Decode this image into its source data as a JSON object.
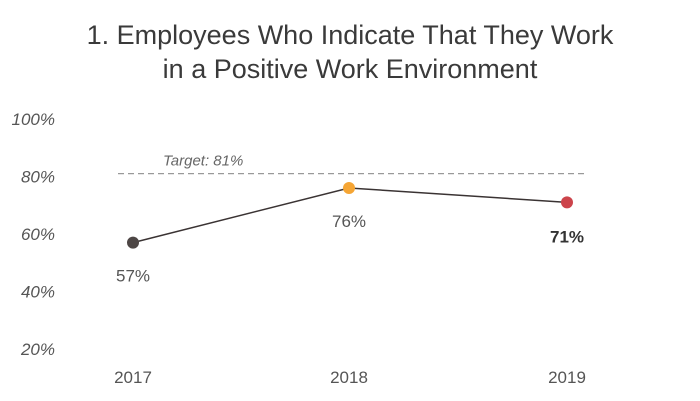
{
  "chart_data": {
    "type": "line",
    "title_line1": "1. Employees Who Indicate That They Work",
    "title_line2": "in a Positive Work Environment",
    "categories": [
      "2017",
      "2018",
      "2019"
    ],
    "values": [
      57,
      76,
      71
    ],
    "value_labels": [
      "57%",
      "76%",
      "71%"
    ],
    "point_colors": [
      "#4d4645",
      "#f5a534",
      "#cc444b"
    ],
    "line_color": "#3a3333",
    "ylim": [
      20,
      100
    ],
    "yticks": [
      20,
      40,
      60,
      80,
      100
    ],
    "ytick_labels": [
      "20%",
      "40%",
      "60%",
      "80%",
      "100%"
    ],
    "target": {
      "value": 81,
      "label": "Target: 81%",
      "color": "#999999"
    },
    "grid": false
  }
}
